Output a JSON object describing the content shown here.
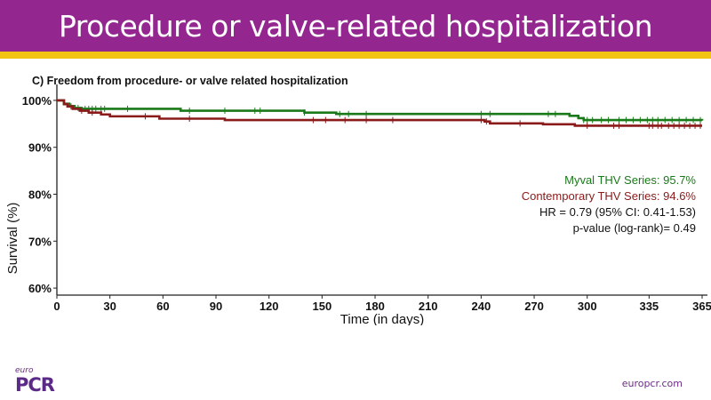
{
  "slide": {
    "title": "Procedure or valve-related hospitalization",
    "colors": {
      "header": "#93278f",
      "accent_bar": "#f2c313"
    },
    "footer": {
      "logo_small": "euro",
      "logo_main": "PCR",
      "url": "europcr.com"
    }
  },
  "chart_data": {
    "type": "line",
    "subtype": "kaplan-meier",
    "title": "C) Freedom from procedure- or valve related hospitalization",
    "xlabel": "Time (in days)",
    "ylabel": "Survival (%)",
    "xlim": [
      0,
      365
    ],
    "ylim": [
      58.5,
      101.5
    ],
    "xticks": [
      0,
      30,
      60,
      90,
      120,
      150,
      180,
      210,
      240,
      270,
      300,
      335,
      365
    ],
    "yticks": [
      60,
      70,
      80,
      90,
      100
    ],
    "ytick_labels": [
      "60%",
      "70%",
      "80%",
      "90%",
      "100%"
    ],
    "grid": false,
    "series": [
      {
        "name": "Myval THV Series",
        "color": "#1a7a1a",
        "steps": [
          [
            0,
            100
          ],
          [
            4,
            99.3
          ],
          [
            7,
            98.8
          ],
          [
            10,
            98.4
          ],
          [
            14,
            98.2
          ],
          [
            70,
            97.8
          ],
          [
            140,
            97.4
          ],
          [
            158,
            97.1
          ],
          [
            290,
            96.7
          ],
          [
            295,
            96.2
          ],
          [
            298,
            95.8
          ],
          [
            365,
            95.7
          ]
        ],
        "censor_x": [
          12,
          16,
          18,
          20,
          22,
          25,
          27,
          40,
          75,
          95,
          112,
          115,
          140,
          160,
          165,
          175,
          240,
          245,
          278,
          282,
          298,
          300,
          303,
          308,
          312,
          318,
          322,
          326,
          330,
          334,
          337,
          340,
          344,
          348,
          352,
          356,
          360,
          364
        ]
      },
      {
        "name": "Contemporary THV Series",
        "color": "#8b1a1a",
        "steps": [
          [
            0,
            100
          ],
          [
            4,
            99.2
          ],
          [
            6,
            98.7
          ],
          [
            9,
            98.2
          ],
          [
            13,
            97.8
          ],
          [
            18,
            97.4
          ],
          [
            25,
            97.0
          ],
          [
            30,
            96.6
          ],
          [
            58,
            96.1
          ],
          [
            95,
            95.8
          ],
          [
            242,
            95.5
          ],
          [
            245,
            95.1
          ],
          [
            275,
            94.9
          ],
          [
            293,
            94.6
          ],
          [
            365,
            94.6
          ]
        ],
        "censor_x": [
          8,
          14,
          20,
          50,
          75,
          145,
          152,
          163,
          175,
          190,
          240,
          243,
          262,
          300,
          315,
          318,
          335,
          337,
          340,
          342,
          346,
          349,
          352,
          355,
          358,
          361,
          364
        ]
      }
    ],
    "annotations": [
      {
        "text": "Myval THV Series: 95.7%",
        "color": "#1a7a1a"
      },
      {
        "text": "Contemporary THV Series: 94.6%",
        "color": "#8b1a1a"
      },
      {
        "text": "HR = 0.79 (95% CI: 0.41-1.53)",
        "color": "#111111"
      },
      {
        "text": "p-value (log-rank)= 0.49",
        "color": "#111111"
      }
    ]
  }
}
